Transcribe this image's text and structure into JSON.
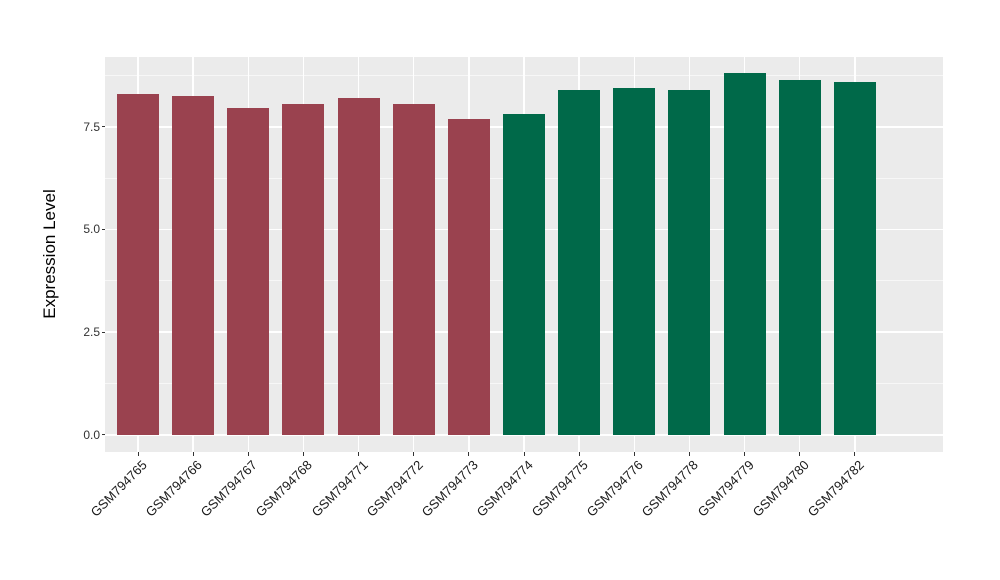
{
  "figure": {
    "background": "#FFFFFF",
    "panel_background": "#EBEBEB",
    "gridline_color": "#FFFFFF",
    "tick_color": "#333333"
  },
  "chart_data": {
    "type": "bar",
    "title": "",
    "xlabel": "",
    "ylabel": "Expression Level",
    "categories": [
      "GSM794765",
      "GSM794766",
      "GSM794767",
      "GSM794768",
      "GSM794771",
      "GSM794772",
      "GSM794773",
      "GSM794774",
      "GSM794775",
      "GSM794776",
      "GSM794778",
      "GSM794779",
      "GSM794780",
      "GSM794782"
    ],
    "values": [
      8.3,
      8.25,
      7.95,
      8.05,
      8.2,
      8.05,
      7.7,
      7.8,
      8.4,
      8.45,
      8.4,
      8.8,
      8.65,
      8.6
    ],
    "bar_colors": [
      "#9A424F",
      "#9A424F",
      "#9A424F",
      "#9A424F",
      "#9A424F",
      "#9A424F",
      "#9A424F",
      "#006949",
      "#006949",
      "#006949",
      "#006949",
      "#006949",
      "#006949",
      "#006949"
    ],
    "group_colors": {
      "left_group_red": "#9A424F",
      "right_group_green": "#006949"
    },
    "yticks": [
      0,
      2.5,
      5,
      7.5
    ],
    "ytick_labels": [
      "0.0",
      "2.5",
      "5.0",
      "7.5"
    ],
    "yticks_minor": [
      1.25,
      3.75,
      6.25,
      8.75
    ],
    "ylim": [
      -0.42,
      9.2
    ],
    "bar_baseline": 0,
    "grid": "major-and-minor-white-on-gray",
    "legend_position": "none",
    "x_label_angle_deg": 45
  }
}
